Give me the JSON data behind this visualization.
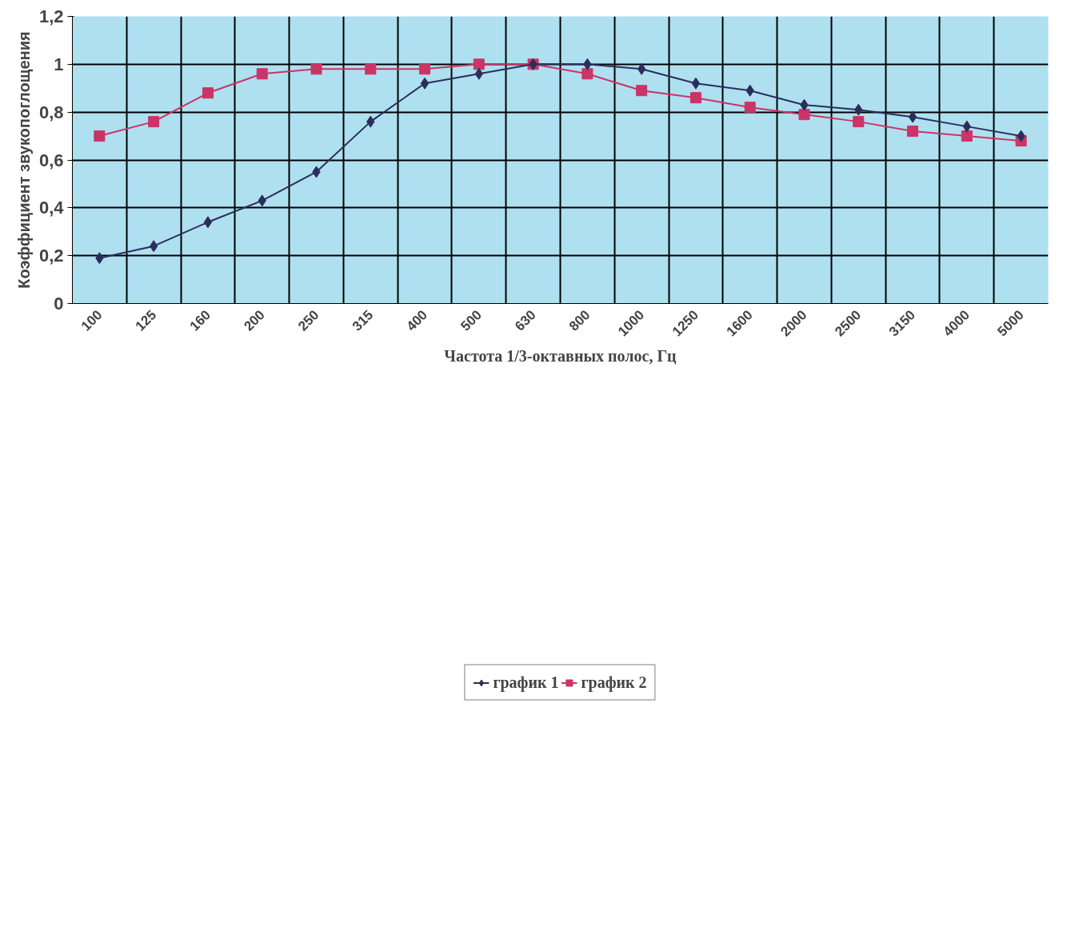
{
  "chart_data": {
    "type": "line",
    "xlabel": "Частота 1/3-октавных полос, Гц",
    "ylabel": "Коэффициент звукопоглощения",
    "categories": [
      "100",
      "125",
      "160",
      "200",
      "250",
      "315",
      "400",
      "500",
      "630",
      "800",
      "1000",
      "1250",
      "1600",
      "2000",
      "2500",
      "3150",
      "4000",
      "5000"
    ],
    "series": [
      {
        "name": "график 1",
        "color": "#2b2d5c",
        "marker": "diamond",
        "values": [
          0.19,
          0.24,
          0.34,
          0.43,
          0.55,
          0.76,
          0.92,
          0.96,
          1.0,
          1.0,
          0.98,
          0.92,
          0.89,
          0.83,
          0.81,
          0.78,
          0.74,
          0.7
        ]
      },
      {
        "name": "график 2",
        "color": "#cc3366",
        "marker": "square",
        "values": [
          0.7,
          0.76,
          0.88,
          0.96,
          0.98,
          0.98,
          0.98,
          1.0,
          1.0,
          0.96,
          0.89,
          0.86,
          0.82,
          0.79,
          0.76,
          0.72,
          0.7,
          0.68
        ]
      }
    ],
    "ylim": [
      0,
      1.2
    ],
    "yticks": [
      0,
      {
        "value": 0.2,
        "label": "0,2"
      },
      {
        "value": 0.4,
        "label": "0,4"
      },
      {
        "value": 0.6,
        "label": "0,6"
      },
      {
        "value": 0.8,
        "label": "0,8"
      },
      1,
      {
        "value": 1.2,
        "label": "1,2"
      }
    ],
    "grid": true,
    "legend": "bottom",
    "line_style": "solid"
  }
}
